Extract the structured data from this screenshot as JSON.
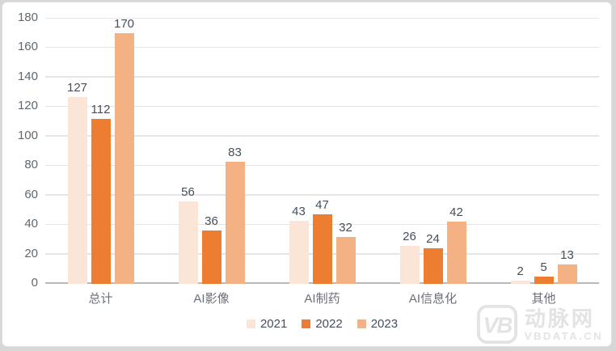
{
  "page": {
    "bg": "#d7d7d7",
    "card_bg": "#ffffff",
    "card_border": "#e0e0e0"
  },
  "chart_data": {
    "type": "bar",
    "title": "",
    "categories": [
      "总计",
      "AI影像",
      "AI制药",
      "AI信息化",
      "其他"
    ],
    "series": [
      {
        "name": "2021",
        "color": "#FBE5D6",
        "values": [
          127,
          56,
          43,
          26,
          2
        ]
      },
      {
        "name": "2022",
        "color": "#ED7D31",
        "values": [
          112,
          36,
          47,
          24,
          5
        ]
      },
      {
        "name": "2023",
        "color": "#F4B183",
        "values": [
          170,
          83,
          32,
          42,
          13
        ]
      }
    ],
    "ylim": [
      0,
      180
    ],
    "yticks": [
      0,
      20,
      40,
      60,
      80,
      100,
      120,
      140,
      160,
      180
    ],
    "grid": true,
    "legend_position": "bottom",
    "value_labels": true
  },
  "colors": {
    "gridline": "#e5e5e5",
    "axis_line": "#b9b9b9",
    "tick_label": "#5f6771",
    "category_label": "#6a7078",
    "value_label": "#454e5d",
    "legend_label": "#454e5d",
    "watermark": "#e3e3e3"
  },
  "watermark": {
    "logo": "VB",
    "brand": "动脉网",
    "site": "VBDATA.CN"
  }
}
